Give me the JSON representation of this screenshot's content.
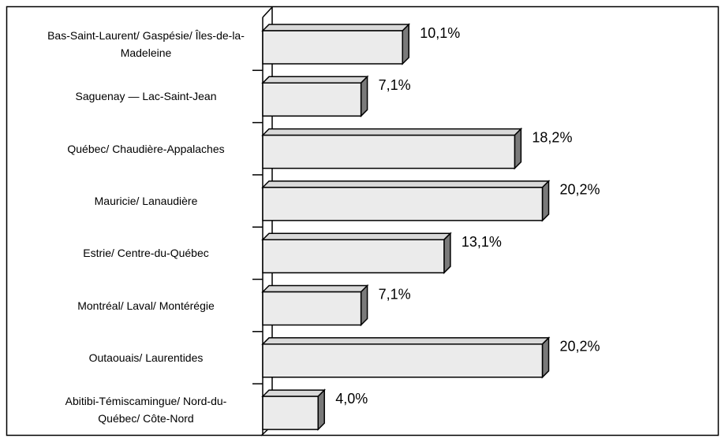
{
  "chart_data": {
    "type": "bar",
    "orientation": "horizontal",
    "categories": [
      "Bas-Saint-Laurent/ Gaspésie/ Îles-de-la-Madeleine",
      "Saguenay — Lac-Saint-Jean",
      "Québec/ Chaudière-Appalaches",
      "Mauricie/ Lanaudière",
      "Estrie/ Centre-du-Québec",
      "Montréal/ Laval/ Montérégie",
      "Outaouais/ Laurentides",
      "Abitibi-Témiscamingue/ Nord-du-Québec/ Côte-Nord"
    ],
    "values": [
      10.1,
      7.1,
      18.2,
      20.2,
      13.1,
      7.1,
      20.2,
      4.0
    ],
    "value_labels": [
      "10,1%",
      "7,1%",
      "18,2%",
      "20,2%",
      "13,1%",
      "7,1%",
      "20,2%",
      "4,0%"
    ],
    "color": "#ebebeb"
  }
}
